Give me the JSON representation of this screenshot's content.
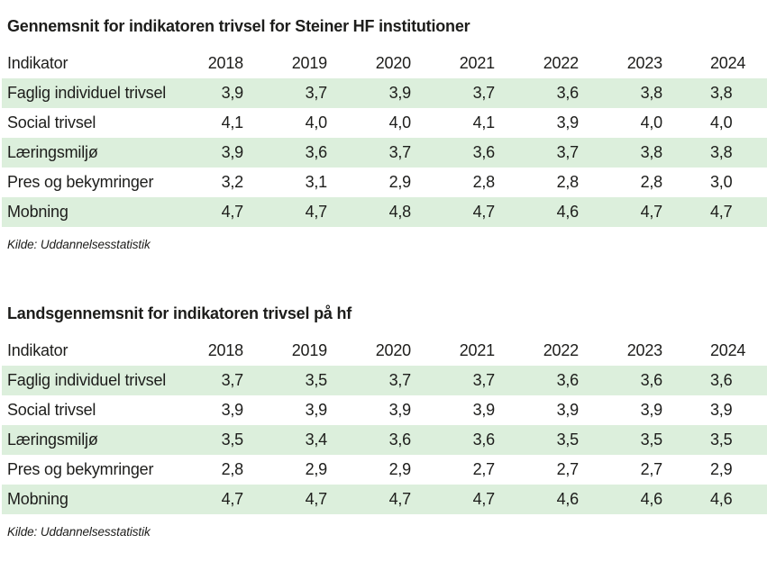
{
  "page": {
    "background_color": "#ffffff",
    "text_color": "#1d1d1b",
    "row_highlight_color": "#dcefdc"
  },
  "sections": [
    {
      "title": "Gennemsnit for indikatoren trivsel for Steiner HF institutioner",
      "source": "Kilde: Uddannelsesstatistik",
      "table": {
        "columns": [
          "Indikator",
          "2018",
          "2019",
          "2020",
          "2021",
          "2022",
          "2023",
          "2024"
        ],
        "rows": [
          {
            "label": "Faglig individuel trivsel",
            "values": [
              "3,9",
              "3,7",
              "3,9",
              "3,7",
              "3,6",
              "3,8",
              "3,8"
            ]
          },
          {
            "label": "Social trivsel",
            "values": [
              "4,1",
              "4,0",
              "4,0",
              "4,1",
              "3,9",
              "4,0",
              "4,0"
            ]
          },
          {
            "label": "Læringsmiljø",
            "values": [
              "3,9",
              "3,6",
              "3,7",
              "3,6",
              "3,7",
              "3,8",
              "3,8"
            ]
          },
          {
            "label": "Pres og bekymringer",
            "values": [
              "3,2",
              "3,1",
              "2,9",
              "2,8",
              "2,8",
              "2,8",
              "3,0"
            ]
          },
          {
            "label": "Mobning",
            "values": [
              "4,7",
              "4,7",
              "4,8",
              "4,7",
              "4,6",
              "4,7",
              "4,7"
            ]
          }
        ]
      }
    },
    {
      "title": "Landsgennemsnit for indikatoren trivsel på hf",
      "source": "Kilde: Uddannelsesstatistik",
      "table": {
        "columns": [
          "Indikator",
          "2018",
          "2019",
          "2020",
          "2021",
          "2022",
          "2023",
          "2024"
        ],
        "rows": [
          {
            "label": "Faglig individuel trivsel",
            "values": [
              "3,7",
              "3,5",
              "3,7",
              "3,7",
              "3,6",
              "3,6",
              "3,6"
            ]
          },
          {
            "label": "Social trivsel",
            "values": [
              "3,9",
              "3,9",
              "3,9",
              "3,9",
              "3,9",
              "3,9",
              "3,9"
            ]
          },
          {
            "label": "Læringsmiljø",
            "values": [
              "3,5",
              "3,4",
              "3,6",
              "3,6",
              "3,5",
              "3,5",
              "3,5"
            ]
          },
          {
            "label": "Pres og bekymringer",
            "values": [
              "2,8",
              "2,9",
              "2,9",
              "2,7",
              "2,7",
              "2,7",
              "2,9"
            ]
          },
          {
            "label": "Mobning",
            "values": [
              "4,7",
              "4,7",
              "4,7",
              "4,7",
              "4,6",
              "4,6",
              "4,6"
            ]
          }
        ]
      }
    }
  ]
}
